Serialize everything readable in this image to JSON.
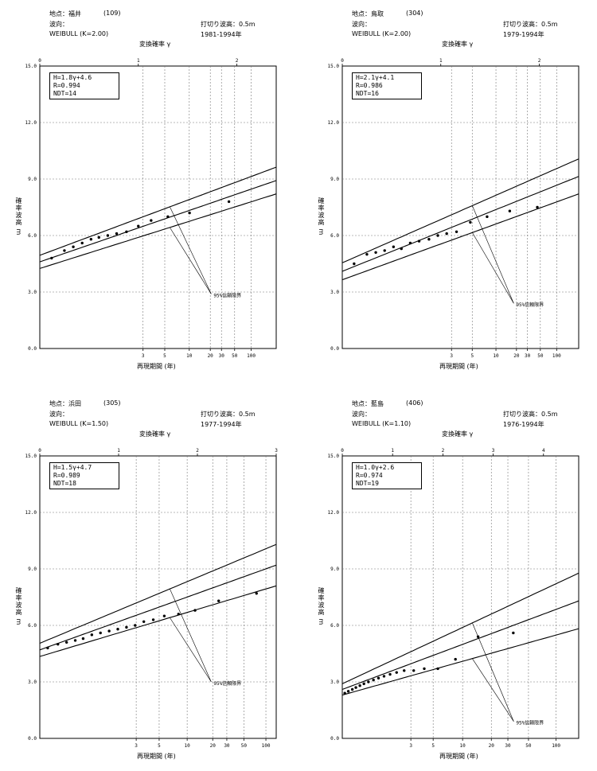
{
  "labels": {
    "transform_axis": "変換確率 γ",
    "return_period_axis": "再現期間 (年)",
    "ylabel": "確率波高 m",
    "cutoff_label": "打切り波高：",
    "confidence_label": "95%信頼限界",
    "direction_label": "波向："
  },
  "chart_data": [
    {
      "type": "scatter",
      "station": "地点：福井",
      "code": "(109)",
      "distribution": "WEIBULL (K=2.00)",
      "cutoff": "0.5m",
      "period": "1981-1994年",
      "equation": "H=1.8γ+4.6",
      "r": "R=0.994",
      "ndt": "NDT=14",
      "ylim": [
        0,
        15
      ],
      "yticks": [
        "0.0",
        "3.0",
        "6.0",
        "9.0",
        "12.0",
        "15.0"
      ],
      "gamma_max": 2.4,
      "gamma_ticks": [
        "0",
        "1",
        "2"
      ],
      "k": 2.0,
      "nu": 1.0,
      "return_period_ticks": [
        "3",
        "5",
        "10",
        "20",
        "30",
        "50",
        "100"
      ],
      "fit": {
        "slope": 1.8,
        "intercept": 4.6
      },
      "ci": {
        "a": 0.35,
        "b": 0.15
      },
      "points_gamma": [
        0.12,
        0.25,
        0.34,
        0.43,
        0.52,
        0.6,
        0.69,
        0.78,
        0.88,
        1.0,
        1.13,
        1.3,
        1.52,
        1.92
      ],
      "points_h": [
        4.8,
        5.2,
        5.4,
        5.6,
        5.8,
        5.9,
        6.0,
        6.1,
        6.2,
        6.5,
        6.8,
        7.0,
        7.2,
        7.8
      ]
    },
    {
      "type": "scatter",
      "station": "地点：鳥取",
      "code": "(304)",
      "distribution": "WEIBULL (K=2.00)",
      "cutoff": "0.5m",
      "period": "1979-1994年",
      "equation": "H=2.1γ+4.1",
      "r": "R=0.986",
      "ndt": "NDT=16",
      "ylim": [
        0,
        15
      ],
      "yticks": [
        "0.0",
        "3.0",
        "6.0",
        "9.0",
        "12.0",
        "15.0"
      ],
      "gamma_max": 2.4,
      "gamma_ticks": [
        "0",
        "1",
        "2"
      ],
      "k": 2.0,
      "nu": 1.14,
      "return_period_ticks": [
        "3",
        "5",
        "10",
        "20",
        "30",
        "50",
        "100"
      ],
      "fit": {
        "slope": 2.1,
        "intercept": 4.1
      },
      "ci": {
        "a": 0.45,
        "b": 0.2
      },
      "points_gamma": [
        0.12,
        0.25,
        0.34,
        0.43,
        0.52,
        0.6,
        0.69,
        0.78,
        0.88,
        0.97,
        1.06,
        1.16,
        1.3,
        1.47,
        1.7,
        1.98
      ],
      "points_h": [
        4.5,
        5.0,
        5.1,
        5.2,
        5.4,
        5.3,
        5.6,
        5.7,
        5.8,
        6.0,
        6.1,
        6.2,
        6.7,
        7.0,
        7.3,
        7.5
      ]
    },
    {
      "type": "scatter",
      "station": "地点：浜田",
      "code": "(305)",
      "distribution": "WEIBULL (K=1.50)",
      "cutoff": "0.5m",
      "period": "1977-1994年",
      "equation": "H=1.5γ+4.7",
      "r": "R=0.989",
      "ndt": "NDT=18",
      "ylim": [
        0,
        15
      ],
      "yticks": [
        "0.0",
        "3.0",
        "6.0",
        "9.0",
        "12.0",
        "15.0"
      ],
      "gamma_max": 3.0,
      "gamma_ticks": [
        "0",
        "1",
        "2",
        "3"
      ],
      "k": 1.5,
      "nu": 1.29,
      "return_period_ticks": [
        "3",
        "5",
        "10",
        "20",
        "30",
        "50",
        "100"
      ],
      "fit": {
        "slope": 1.5,
        "intercept": 4.7
      },
      "ci": {
        "a": 0.35,
        "b": 0.25
      },
      "points_gamma": [
        0.1,
        0.23,
        0.34,
        0.45,
        0.55,
        0.66,
        0.77,
        0.88,
        0.99,
        1.1,
        1.21,
        1.32,
        1.44,
        1.58,
        1.76,
        1.97,
        2.27,
        2.75
      ],
      "points_h": [
        4.8,
        5.0,
        5.1,
        5.2,
        5.3,
        5.5,
        5.6,
        5.7,
        5.8,
        5.9,
        6.0,
        6.2,
        6.3,
        6.5,
        6.6,
        6.8,
        7.3,
        7.7
      ]
    },
    {
      "type": "scatter",
      "station": "地点：藍島",
      "code": "(406)",
      "distribution": "WEIBULL (K=1.10)",
      "cutoff": "0.5m",
      "period": "1976-1994年",
      "equation": "H=1.0γ+2.6",
      "r": "R=0.974",
      "ndt": "NDT=19",
      "ylim": [
        0,
        15
      ],
      "yticks": [
        "0.0",
        "3.0",
        "6.0",
        "9.0",
        "12.0",
        "15.0"
      ],
      "gamma_max": 4.7,
      "gamma_ticks": [
        "0",
        "1",
        "2",
        "3",
        "4"
      ],
      "k": 1.1,
      "nu": 1.36,
      "return_period_ticks": [
        "3",
        "5",
        "10",
        "20",
        "30",
        "50",
        "100"
      ],
      "fit": {
        "slope": 1.0,
        "intercept": 2.6
      },
      "ci": {
        "a": 0.3,
        "b": 0.25
      },
      "points_gamma": [
        0.05,
        0.12,
        0.2,
        0.27,
        0.35,
        0.43,
        0.52,
        0.62,
        0.72,
        0.83,
        0.95,
        1.08,
        1.23,
        1.42,
        1.63,
        1.9,
        2.25,
        2.7,
        3.4
      ],
      "points_h": [
        2.4,
        2.5,
        2.6,
        2.7,
        2.8,
        2.9,
        3.0,
        3.1,
        3.2,
        3.3,
        3.4,
        3.5,
        3.6,
        3.6,
        3.7,
        3.7,
        4.2,
        5.4,
        5.6
      ]
    }
  ]
}
